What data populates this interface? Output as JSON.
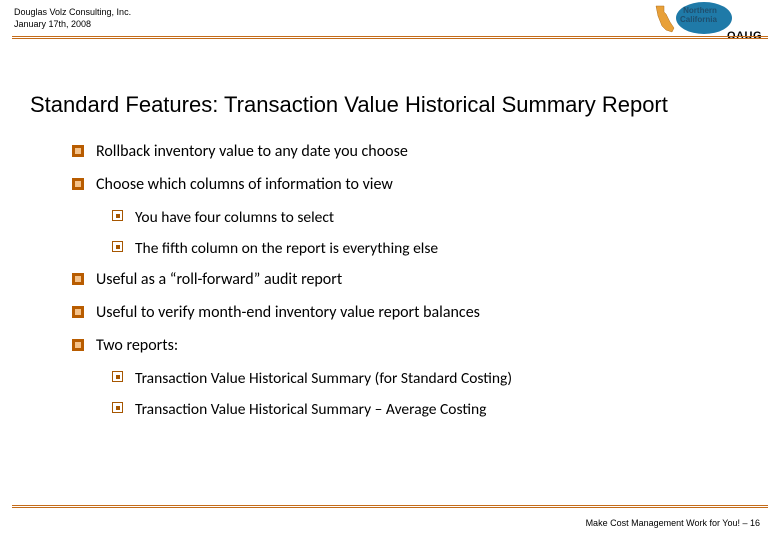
{
  "header": {
    "company": "Douglas Volz Consulting, Inc.",
    "date": "January 17th, 2008",
    "logo_region_top": "Northern",
    "logo_region_bottom": "California",
    "logo_acronym": "OAUG",
    "rule_color": "#c46c1a",
    "logo_oval_color": "#1f7aa8",
    "logo_text_color": "#1f4f6e"
  },
  "title": "Standard Features:  Transaction Value Historical Summary Report",
  "bullets": [
    {
      "level": 1,
      "text": "Rollback inventory value to any date you choose"
    },
    {
      "level": 1,
      "text": "Choose which columns of information to view"
    },
    {
      "level": 2,
      "text": "You have four columns to select"
    },
    {
      "level": 2,
      "text": "The fifth column on the report is everything else"
    },
    {
      "level": 1,
      "text": "Useful as a “roll-forward” audit report"
    },
    {
      "level": 1,
      "text": "Useful to verify month-end inventory value report balances"
    },
    {
      "level": 1,
      "text": "Two reports:"
    },
    {
      "level": 2,
      "text": "Transaction Value Historical Summary (for Standard Costing)"
    },
    {
      "level": 2,
      "text": "Transaction Value Historical Summary – Average Costing"
    }
  ],
  "bullet_style": {
    "level1_outer_color": "#b85c00",
    "level1_inner_color": "#f5c28a",
    "level2_border_color": "#a65600",
    "level2_dot_color": "#a65600",
    "text_color": "#000000",
    "text_fontsize_l1": 16,
    "text_fontsize_l2": 15.5
  },
  "footer": {
    "text": "Make Cost Management Work for You! – 16"
  }
}
